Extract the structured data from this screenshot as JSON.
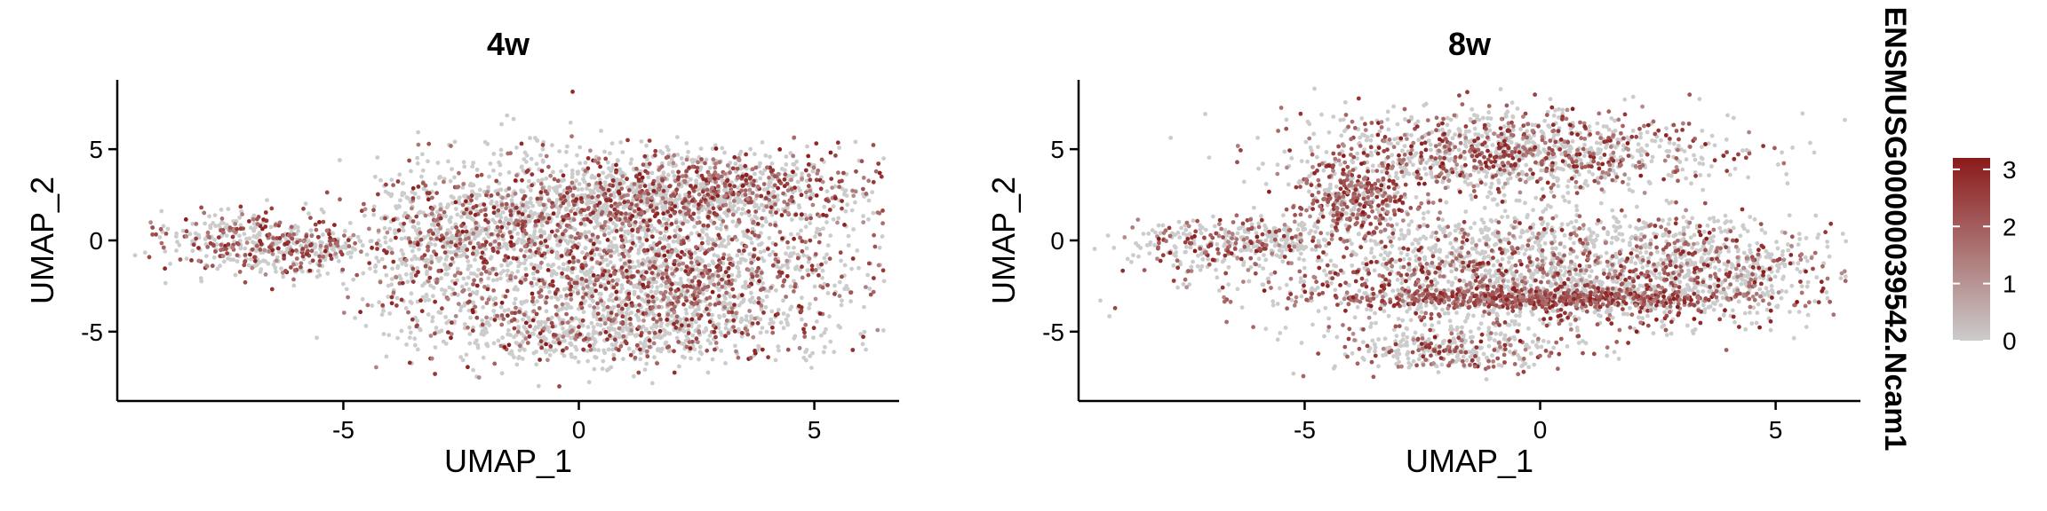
{
  "chart_data": [
    {
      "type": "scatter",
      "title": "4w",
      "xlabel": "UMAP_1",
      "ylabel": "UMAP_2",
      "xlim": [
        -9.8,
        6.8
      ],
      "ylim": [
        -8.8,
        8.8
      ],
      "xticks": [
        -5,
        0,
        5
      ],
      "yticks": [
        -5,
        0,
        5
      ],
      "grid": false,
      "point_color_default": "#cccccc",
      "expression_color_high": "#8b1a1a",
      "clusters": [
        {
          "cx": -7.0,
          "cy": -0.1,
          "sx": 0.9,
          "sy": 0.9,
          "w": 0.07,
          "expr": 0.45
        },
        {
          "cx": -5.6,
          "cy": -0.5,
          "sx": 0.5,
          "sy": 0.5,
          "w": 0.02,
          "expr": 0.25
        },
        {
          "cx": -1.8,
          "cy": 1.2,
          "sx": 1.4,
          "sy": 1.4,
          "w": 0.1,
          "expr": 0.35
        },
        {
          "cx": -0.5,
          "cy": 4.5,
          "sx": 1.8,
          "sy": 1.0,
          "w": 0.02,
          "expr": 0.1
        },
        {
          "cx": 3.0,
          "cy": 2.8,
          "sx": 1.8,
          "sy": 1.1,
          "w": 0.18,
          "expr": 0.45
        },
        {
          "cx": 1.0,
          "cy": 2.0,
          "sx": 1.6,
          "sy": 0.8,
          "w": 0.08,
          "expr": 0.4
        },
        {
          "cx": 1.8,
          "cy": -2.0,
          "sx": 2.2,
          "sy": 2.0,
          "w": 0.33,
          "expr": 0.38
        },
        {
          "cx": 0.5,
          "cy": -5.0,
          "sx": 2.0,
          "sy": 1.0,
          "w": 0.12,
          "expr": 0.25
        },
        {
          "cx": -3.0,
          "cy": -1.0,
          "sx": 1.0,
          "sy": 2.0,
          "w": 0.08,
          "expr": 0.25
        }
      ]
    },
    {
      "type": "scatter",
      "title": "8w",
      "xlabel": "UMAP_1",
      "ylabel": "UMAP_2",
      "xlim": [
        -9.8,
        6.8
      ],
      "ylim": [
        -8.8,
        8.8
      ],
      "xticks": [
        -5,
        0,
        5
      ],
      "yticks": [
        -5,
        0,
        5
      ],
      "grid": false,
      "point_color_default": "#cccccc",
      "expression_color_high": "#8b1a1a",
      "clusters": [
        {
          "cx": -7.0,
          "cy": -0.2,
          "sx": 0.9,
          "sy": 0.8,
          "w": 0.05,
          "expr": 0.4
        },
        {
          "cx": -5.5,
          "cy": 0.0,
          "sx": 0.6,
          "sy": 0.5,
          "w": 0.02,
          "expr": 0.25
        },
        {
          "cx": -4.0,
          "cy": 2.2,
          "sx": 0.7,
          "sy": 1.1,
          "w": 0.07,
          "expr": 0.65
        },
        {
          "cx": -0.5,
          "cy": 4.8,
          "sx": 2.2,
          "sy": 1.2,
          "w": 0.22,
          "expr": 0.4
        },
        {
          "cx": 0.0,
          "cy": 0.3,
          "sx": 2.5,
          "sy": 0.6,
          "w": 0.06,
          "expr": 0.15
        },
        {
          "cx": -0.2,
          "cy": -2.2,
          "sx": 3.0,
          "sy": 1.4,
          "w": 0.32,
          "expr": 0.38
        },
        {
          "cx": 0.0,
          "cy": -3.2,
          "sx": 2.0,
          "sy": 0.25,
          "w": 0.1,
          "expr": 0.9
        },
        {
          "cx": -1.8,
          "cy": -6.0,
          "sx": 1.2,
          "sy": 0.6,
          "w": 0.06,
          "expr": 0.35
        },
        {
          "cx": 3.5,
          "cy": -1.5,
          "sx": 1.2,
          "sy": 1.3,
          "w": 0.1,
          "expr": 0.3
        }
      ]
    }
  ],
  "legend": {
    "title": "ENSMUSG00000039542.Ncam1",
    "ticks": [
      3,
      2,
      1,
      0
    ],
    "range": [
      0,
      3.2
    ],
    "color_low": "#cccccc",
    "color_high": "#8b1a1a",
    "position": "right"
  }
}
